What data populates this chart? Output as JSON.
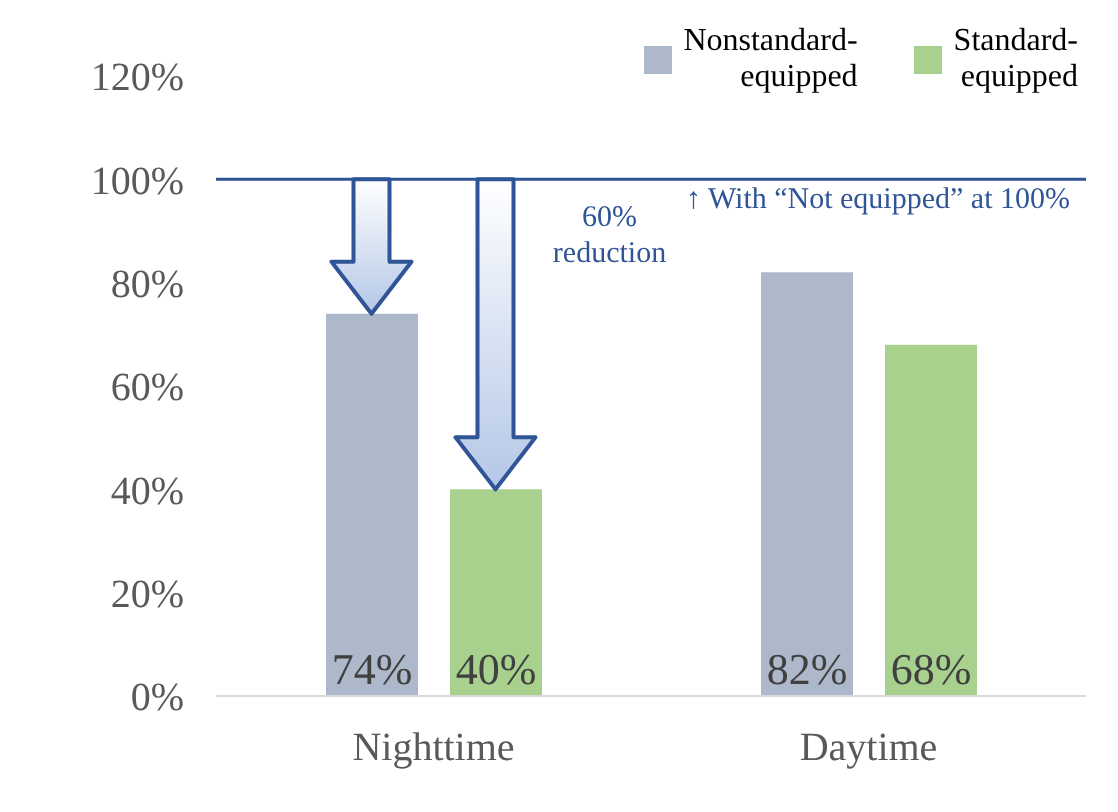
{
  "chart_data": {
    "type": "bar",
    "categories": [
      "Nighttime",
      "Daytime"
    ],
    "series": [
      {
        "name": "Nonstandard-equipped",
        "color": "#adb9ca",
        "values": [
          74,
          82
        ]
      },
      {
        "name": "Standard-equipped",
        "color": "#a9d18e",
        "values": [
          40,
          68
        ]
      }
    ],
    "ylim": [
      0,
      120
    ],
    "yticks": [
      {
        "value": 0,
        "label": "0%"
      },
      {
        "value": 20,
        "label": "20%"
      },
      {
        "value": 40,
        "label": "40%"
      },
      {
        "value": 60,
        "label": "60%"
      },
      {
        "value": 80,
        "label": "80%"
      },
      {
        "value": 100,
        "label": "100%"
      },
      {
        "value": 120,
        "label": "120%"
      }
    ],
    "value_labels": [
      [
        "74%",
        "82%"
      ],
      [
        "40%",
        "68%"
      ]
    ],
    "ref_lines": [
      {
        "axis": "y",
        "value": 100,
        "label": "↑ With “Not equipped” at 100%",
        "color": "#2f5597"
      }
    ],
    "annotations": [
      "60% reduction"
    ],
    "legend": "top right"
  }
}
